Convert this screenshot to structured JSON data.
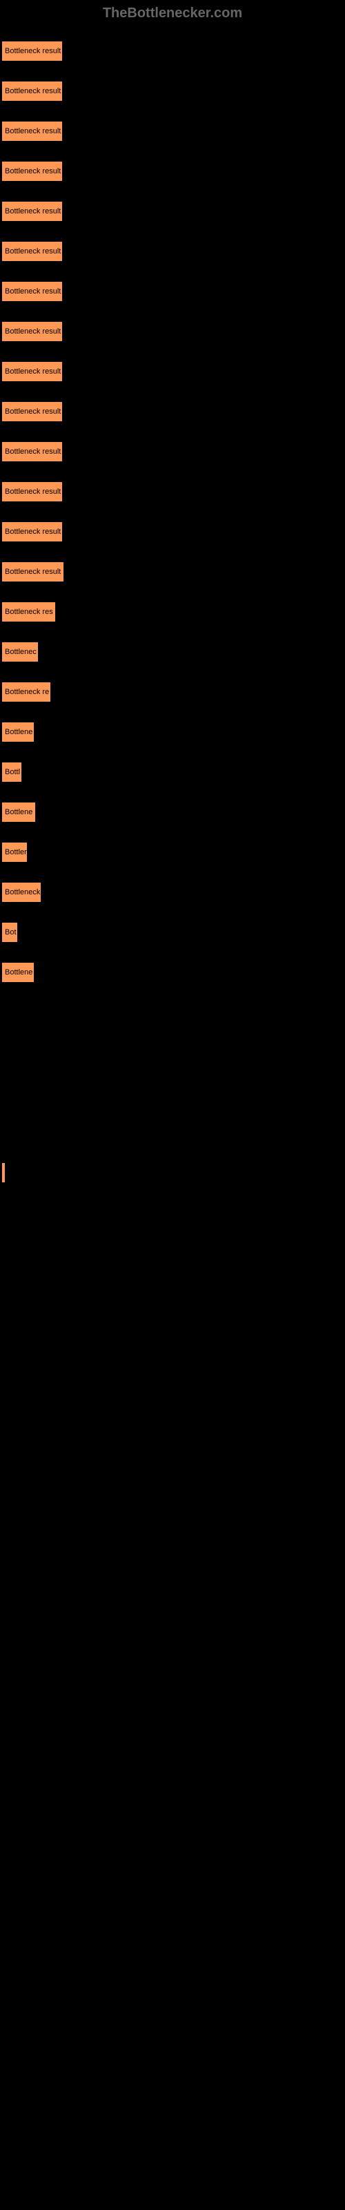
{
  "header": {
    "text": "TheBottlenecker.com"
  },
  "chart": {
    "type": "bar",
    "background_color": "#000000",
    "bar_color": "#ff9955",
    "bar_border_color": "#000000",
    "label_color": "#000000",
    "label_fontsize": 11,
    "bars": [
      {
        "label": "Bottleneck result",
        "width": 89
      },
      {
        "label": "Bottleneck result",
        "width": 89
      },
      {
        "label": "Bottleneck result",
        "width": 89
      },
      {
        "label": "Bottleneck result",
        "width": 89
      },
      {
        "label": "Bottleneck result",
        "width": 89
      },
      {
        "label": "Bottleneck result",
        "width": 89
      },
      {
        "label": "Bottleneck result",
        "width": 89
      },
      {
        "label": "Bottleneck result",
        "width": 89
      },
      {
        "label": "Bottleneck result",
        "width": 89
      },
      {
        "label": "Bottleneck result",
        "width": 89
      },
      {
        "label": "Bottleneck result",
        "width": 89
      },
      {
        "label": "Bottleneck result",
        "width": 89
      },
      {
        "label": "Bottleneck result",
        "width": 89
      },
      {
        "label": "Bottleneck result",
        "width": 91
      },
      {
        "label": "Bottleneck res",
        "width": 79
      },
      {
        "label": "Bottlenec",
        "width": 54
      },
      {
        "label": "Bottleneck re",
        "width": 72
      },
      {
        "label": "Bottlene",
        "width": 48
      },
      {
        "label": "Bottl",
        "width": 30
      },
      {
        "label": "Bottlene",
        "width": 50
      },
      {
        "label": "Bottler",
        "width": 38
      },
      {
        "label": "Bottleneck",
        "width": 58
      },
      {
        "label": "Bot",
        "width": 24
      },
      {
        "label": "Bottlene",
        "width": 48
      },
      {
        "label": "",
        "width": 0
      },
      {
        "label": "",
        "width": 0
      },
      {
        "label": "",
        "width": 0
      },
      {
        "label": "",
        "width": 0
      },
      {
        "label": "",
        "width": 6
      },
      {
        "label": "",
        "width": 0
      }
    ]
  }
}
